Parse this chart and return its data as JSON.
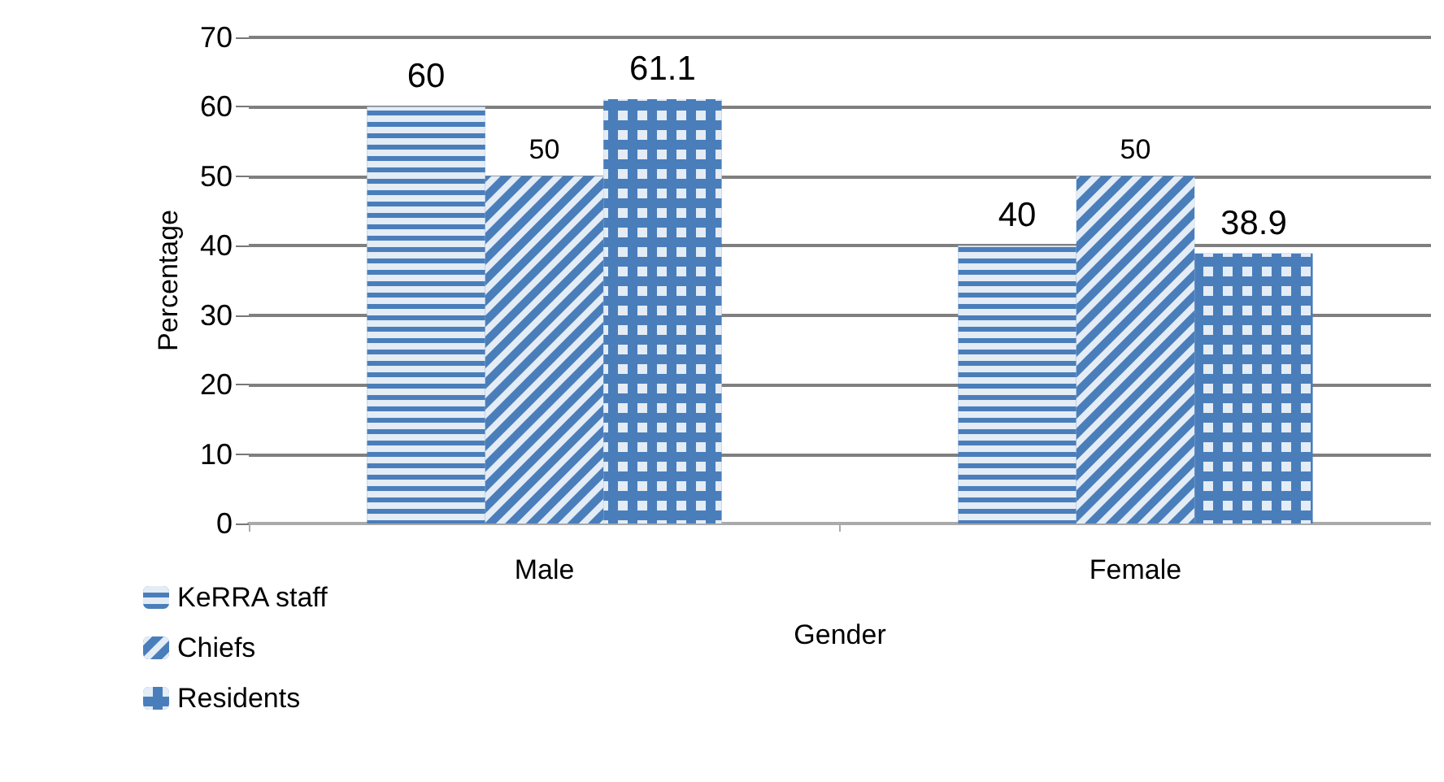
{
  "chart_data": {
    "type": "bar",
    "xlabel": "Gender",
    "ylabel": "Percentage",
    "categories": [
      "Male",
      "Female"
    ],
    "series": [
      {
        "name": "KeRRA staff",
        "color": "#4a7ebb",
        "values": [
          60,
          40
        ]
      },
      {
        "name": "Chiefs",
        "color": "#4a7ebb",
        "values": [
          50,
          50
        ]
      },
      {
        "name": "Residents",
        "color": "#4a7ebb",
        "values": [
          61.1,
          38.9
        ]
      }
    ],
    "ylim": [
      0,
      70
    ],
    "yticks": [
      0,
      10,
      20,
      30,
      40,
      50,
      60,
      70
    ],
    "grid": "y",
    "legend": "bottom left",
    "data_labels": true
  }
}
